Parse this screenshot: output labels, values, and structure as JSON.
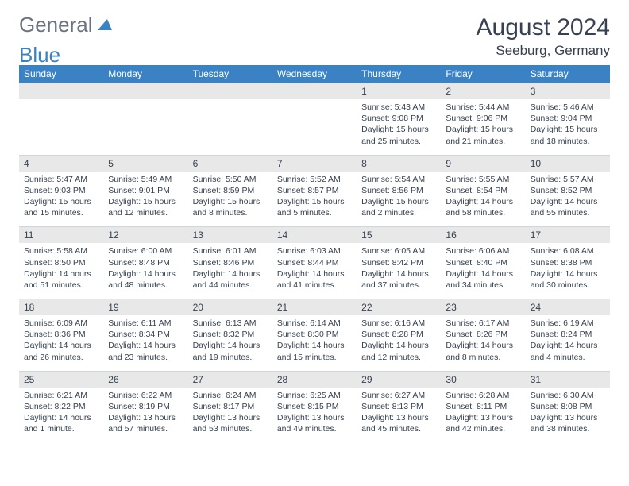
{
  "logo": {
    "text_general": "General",
    "text_blue": "Blue"
  },
  "header": {
    "month_title": "August 2024",
    "location": "Seeburg, Germany"
  },
  "colors": {
    "header_bg": "#3b82c4",
    "header_text": "#ffffff",
    "daynum_bg": "#e8e8e8",
    "text": "#374151",
    "logo_gray": "#6b7280",
    "logo_blue": "#3b82c4",
    "page_bg": "#ffffff"
  },
  "weekdays": [
    "Sunday",
    "Monday",
    "Tuesday",
    "Wednesday",
    "Thursday",
    "Friday",
    "Saturday"
  ],
  "weeks": [
    [
      null,
      null,
      null,
      null,
      {
        "num": "1",
        "sunrise": "Sunrise: 5:43 AM",
        "sunset": "Sunset: 9:08 PM",
        "daylight": "Daylight: 15 hours and 25 minutes."
      },
      {
        "num": "2",
        "sunrise": "Sunrise: 5:44 AM",
        "sunset": "Sunset: 9:06 PM",
        "daylight": "Daylight: 15 hours and 21 minutes."
      },
      {
        "num": "3",
        "sunrise": "Sunrise: 5:46 AM",
        "sunset": "Sunset: 9:04 PM",
        "daylight": "Daylight: 15 hours and 18 minutes."
      }
    ],
    [
      {
        "num": "4",
        "sunrise": "Sunrise: 5:47 AM",
        "sunset": "Sunset: 9:03 PM",
        "daylight": "Daylight: 15 hours and 15 minutes."
      },
      {
        "num": "5",
        "sunrise": "Sunrise: 5:49 AM",
        "sunset": "Sunset: 9:01 PM",
        "daylight": "Daylight: 15 hours and 12 minutes."
      },
      {
        "num": "6",
        "sunrise": "Sunrise: 5:50 AM",
        "sunset": "Sunset: 8:59 PM",
        "daylight": "Daylight: 15 hours and 8 minutes."
      },
      {
        "num": "7",
        "sunrise": "Sunrise: 5:52 AM",
        "sunset": "Sunset: 8:57 PM",
        "daylight": "Daylight: 15 hours and 5 minutes."
      },
      {
        "num": "8",
        "sunrise": "Sunrise: 5:54 AM",
        "sunset": "Sunset: 8:56 PM",
        "daylight": "Daylight: 15 hours and 2 minutes."
      },
      {
        "num": "9",
        "sunrise": "Sunrise: 5:55 AM",
        "sunset": "Sunset: 8:54 PM",
        "daylight": "Daylight: 14 hours and 58 minutes."
      },
      {
        "num": "10",
        "sunrise": "Sunrise: 5:57 AM",
        "sunset": "Sunset: 8:52 PM",
        "daylight": "Daylight: 14 hours and 55 minutes."
      }
    ],
    [
      {
        "num": "11",
        "sunrise": "Sunrise: 5:58 AM",
        "sunset": "Sunset: 8:50 PM",
        "daylight": "Daylight: 14 hours and 51 minutes."
      },
      {
        "num": "12",
        "sunrise": "Sunrise: 6:00 AM",
        "sunset": "Sunset: 8:48 PM",
        "daylight": "Daylight: 14 hours and 48 minutes."
      },
      {
        "num": "13",
        "sunrise": "Sunrise: 6:01 AM",
        "sunset": "Sunset: 8:46 PM",
        "daylight": "Daylight: 14 hours and 44 minutes."
      },
      {
        "num": "14",
        "sunrise": "Sunrise: 6:03 AM",
        "sunset": "Sunset: 8:44 PM",
        "daylight": "Daylight: 14 hours and 41 minutes."
      },
      {
        "num": "15",
        "sunrise": "Sunrise: 6:05 AM",
        "sunset": "Sunset: 8:42 PM",
        "daylight": "Daylight: 14 hours and 37 minutes."
      },
      {
        "num": "16",
        "sunrise": "Sunrise: 6:06 AM",
        "sunset": "Sunset: 8:40 PM",
        "daylight": "Daylight: 14 hours and 34 minutes."
      },
      {
        "num": "17",
        "sunrise": "Sunrise: 6:08 AM",
        "sunset": "Sunset: 8:38 PM",
        "daylight": "Daylight: 14 hours and 30 minutes."
      }
    ],
    [
      {
        "num": "18",
        "sunrise": "Sunrise: 6:09 AM",
        "sunset": "Sunset: 8:36 PM",
        "daylight": "Daylight: 14 hours and 26 minutes."
      },
      {
        "num": "19",
        "sunrise": "Sunrise: 6:11 AM",
        "sunset": "Sunset: 8:34 PM",
        "daylight": "Daylight: 14 hours and 23 minutes."
      },
      {
        "num": "20",
        "sunrise": "Sunrise: 6:13 AM",
        "sunset": "Sunset: 8:32 PM",
        "daylight": "Daylight: 14 hours and 19 minutes."
      },
      {
        "num": "21",
        "sunrise": "Sunrise: 6:14 AM",
        "sunset": "Sunset: 8:30 PM",
        "daylight": "Daylight: 14 hours and 15 minutes."
      },
      {
        "num": "22",
        "sunrise": "Sunrise: 6:16 AM",
        "sunset": "Sunset: 8:28 PM",
        "daylight": "Daylight: 14 hours and 12 minutes."
      },
      {
        "num": "23",
        "sunrise": "Sunrise: 6:17 AM",
        "sunset": "Sunset: 8:26 PM",
        "daylight": "Daylight: 14 hours and 8 minutes."
      },
      {
        "num": "24",
        "sunrise": "Sunrise: 6:19 AM",
        "sunset": "Sunset: 8:24 PM",
        "daylight": "Daylight: 14 hours and 4 minutes."
      }
    ],
    [
      {
        "num": "25",
        "sunrise": "Sunrise: 6:21 AM",
        "sunset": "Sunset: 8:22 PM",
        "daylight": "Daylight: 14 hours and 1 minute."
      },
      {
        "num": "26",
        "sunrise": "Sunrise: 6:22 AM",
        "sunset": "Sunset: 8:19 PM",
        "daylight": "Daylight: 13 hours and 57 minutes."
      },
      {
        "num": "27",
        "sunrise": "Sunrise: 6:24 AM",
        "sunset": "Sunset: 8:17 PM",
        "daylight": "Daylight: 13 hours and 53 minutes."
      },
      {
        "num": "28",
        "sunrise": "Sunrise: 6:25 AM",
        "sunset": "Sunset: 8:15 PM",
        "daylight": "Daylight: 13 hours and 49 minutes."
      },
      {
        "num": "29",
        "sunrise": "Sunrise: 6:27 AM",
        "sunset": "Sunset: 8:13 PM",
        "daylight": "Daylight: 13 hours and 45 minutes."
      },
      {
        "num": "30",
        "sunrise": "Sunrise: 6:28 AM",
        "sunset": "Sunset: 8:11 PM",
        "daylight": "Daylight: 13 hours and 42 minutes."
      },
      {
        "num": "31",
        "sunrise": "Sunrise: 6:30 AM",
        "sunset": "Sunset: 8:08 PM",
        "daylight": "Daylight: 13 hours and 38 minutes."
      }
    ]
  ]
}
